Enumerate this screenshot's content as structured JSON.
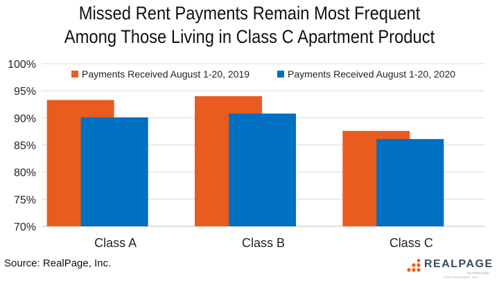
{
  "title_line1": "Missed Rent Payments Remain Most Frequent",
  "title_line2": "Among Those Living in Class C Apartment Product",
  "source": "Source: RealPage, Inc.",
  "logo": {
    "name": "REALPAGE",
    "tagline": "OUTPERFORM",
    "copyright": "©2020 REALPAGE, INC."
  },
  "colors": {
    "series_2019": "#EA5B1F",
    "series_2020": "#0070C0",
    "grid": "#d9d9d9",
    "logo_dots": "#EA5B1F"
  },
  "chart_data": {
    "type": "bar",
    "categories": [
      "Class A",
      "Class B",
      "Class C"
    ],
    "series": [
      {
        "name": "Payments Received August 1-20, 2019",
        "values": [
          93.3,
          94.0,
          87.6
        ]
      },
      {
        "name": "Payments Received August 1-20, 2020",
        "values": [
          90.1,
          90.8,
          86.1
        ]
      }
    ],
    "ylim": [
      70,
      100
    ],
    "yticks": [
      "70%",
      "75%",
      "80%",
      "85%",
      "90%",
      "95%",
      "100%"
    ],
    "grid": true,
    "legend_position": "top"
  }
}
